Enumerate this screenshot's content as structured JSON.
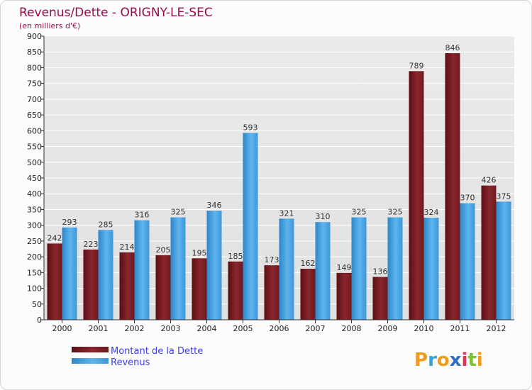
{
  "chart_data": {
    "type": "bar",
    "title": "Revenus/Dette - ORIGNY-LE-SEC",
    "subtitle": "(en milliers d'€)",
    "categories": [
      "2000",
      "2001",
      "2002",
      "2003",
      "2004",
      "2005",
      "2006",
      "2007",
      "2008",
      "2009",
      "2010",
      "2011",
      "2012"
    ],
    "series": [
      {
        "name": "Montant de la Dette",
        "values": [
          242,
          223,
          214,
          205,
          195,
          185,
          173,
          162,
          149,
          136,
          789,
          846,
          426
        ],
        "color": "#7a1e24"
      },
      {
        "name": "Revenus",
        "values": [
          293,
          285,
          316,
          325,
          346,
          593,
          321,
          310,
          325,
          325,
          324,
          370,
          375
        ],
        "color": "#4ea6e6"
      }
    ],
    "y_ticks": [
      0,
      50,
      100,
      150,
      200,
      250,
      300,
      350,
      400,
      450,
      500,
      550,
      600,
      650,
      700,
      750,
      800,
      850,
      900
    ],
    "ylim": [
      0,
      900
    ],
    "grid": true,
    "legend_position": "bottom-left"
  },
  "logo": {
    "text": "Proxiti",
    "letters": [
      {
        "ch": "P",
        "color": "#f29a1a"
      },
      {
        "ch": "r",
        "color": "#35a4d8"
      },
      {
        "ch": "o",
        "color": "#f29a1a"
      },
      {
        "ch": "x",
        "color": "#2d6fc7"
      },
      {
        "ch": "i",
        "color": "#e0335c"
      },
      {
        "ch": "t",
        "color": "#7cbf3a"
      },
      {
        "ch": "i",
        "color": "#f29a1a"
      }
    ]
  }
}
